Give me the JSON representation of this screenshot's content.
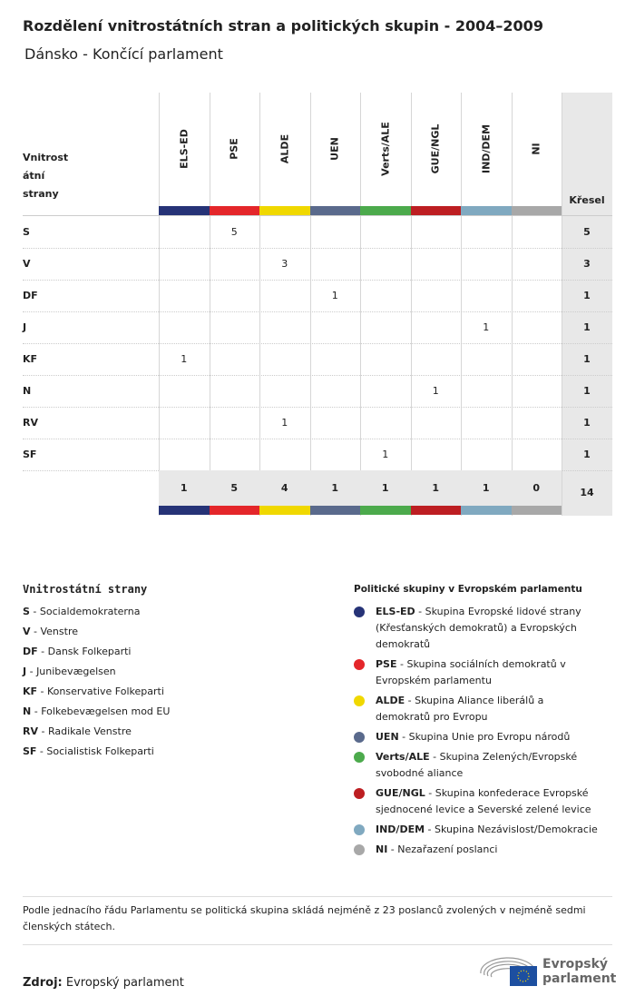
{
  "title": "Rozdělení vnitrostátních stran a politických skupin - 2004–2009",
  "subtitle": "Dánsko - Končící parlament",
  "table": {
    "row_header": [
      "Vnitrost",
      "átní",
      "strany"
    ],
    "total_header": "Křesel",
    "groups": [
      {
        "code": "ELS-ED",
        "color": "#263377"
      },
      {
        "code": "PSE",
        "color": "#e4262a"
      },
      {
        "code": "ALDE",
        "color": "#f0d800"
      },
      {
        "code": "UEN",
        "color": "#5a6a8c"
      },
      {
        "code": "Verts/ALE",
        "color": "#4caa4c"
      },
      {
        "code": "GUE/NGL",
        "color": "#bd1e22"
      },
      {
        "code": "IND/DEM",
        "color": "#80a9c0"
      },
      {
        "code": "NI",
        "color": "#a8a8a8"
      }
    ],
    "rows": [
      {
        "party": "S",
        "values": [
          "",
          "5",
          "",
          "",
          "",
          "",
          "",
          ""
        ],
        "total": "5"
      },
      {
        "party": "V",
        "values": [
          "",
          "",
          "3",
          "",
          "",
          "",
          "",
          ""
        ],
        "total": "3"
      },
      {
        "party": "DF",
        "values": [
          "",
          "",
          "",
          "1",
          "",
          "",
          "",
          ""
        ],
        "total": "1"
      },
      {
        "party": "J",
        "values": [
          "",
          "",
          "",
          "",
          "",
          "",
          "1",
          ""
        ],
        "total": "1"
      },
      {
        "party": "KF",
        "values": [
          "1",
          "",
          "",
          "",
          "",
          "",
          "",
          ""
        ],
        "total": "1"
      },
      {
        "party": "N",
        "values": [
          "",
          "",
          "",
          "",
          "",
          "1",
          "",
          ""
        ],
        "total": "1"
      },
      {
        "party": "RV",
        "values": [
          "",
          "",
          "1",
          "",
          "",
          "",
          "",
          ""
        ],
        "total": "1"
      },
      {
        "party": "SF",
        "values": [
          "",
          "",
          "",
          "",
          "1",
          "",
          "",
          ""
        ],
        "total": "1"
      }
    ],
    "totals": [
      "1",
      "5",
      "4",
      "1",
      "1",
      "1",
      "1",
      "0"
    ],
    "grand_total": "14"
  },
  "national_legend": {
    "title": "Vnitrostátní strany",
    "items": [
      {
        "code": "S",
        "name": "Socialdemokraterna"
      },
      {
        "code": "V",
        "name": "Venstre"
      },
      {
        "code": "DF",
        "name": "Dansk Folkeparti"
      },
      {
        "code": "J",
        "name": "Junibevægelsen"
      },
      {
        "code": "KF",
        "name": "Konservative Folkeparti"
      },
      {
        "code": "N",
        "name": "Folkebevægelsen mod EU"
      },
      {
        "code": "RV",
        "name": "Radikale Venstre"
      },
      {
        "code": "SF",
        "name": "Socialistisk Folkeparti"
      }
    ]
  },
  "group_legend": {
    "title": "Politické skupiny v Evropském parlamentu",
    "items": [
      {
        "code": "ELS-ED",
        "name": "Skupina Evropské lidové strany (Křesťanských demokratů) a Evropských demokratů",
        "lines": 3
      },
      {
        "code": "PSE",
        "name": "Skupina sociálních demokratů v Evropském parlamentu",
        "lines": 2
      },
      {
        "code": "ALDE",
        "name": "Skupina Aliance liberálů a demokratů pro Evropu",
        "lines": 2
      },
      {
        "code": "UEN",
        "name": "Skupina Unie pro Evropu národů",
        "lines": 1
      },
      {
        "code": "Verts/ALE",
        "name": "Skupina Zelených/Evropské svobodné aliance",
        "lines": 2
      },
      {
        "code": "GUE/NGL",
        "name": "Skupina konfederace Evropské sjednocené levice a Severské zelené levice",
        "lines": 2
      },
      {
        "code": "IND/DEM",
        "name": "Skupina Nezávislost/Demokracie",
        "lines": 1
      },
      {
        "code": "NI",
        "name": "Nezařazení poslanci",
        "lines": 1
      }
    ]
  },
  "note": "Podle jednacího řádu Parlamentu se politická skupina skládá nejméně z 23 poslanců zvolených v nejméně sedmi členských státech.",
  "source_label": "Zdroj:",
  "source": "Evropský parlament",
  "logo": [
    "Evropský",
    "parlament"
  ]
}
